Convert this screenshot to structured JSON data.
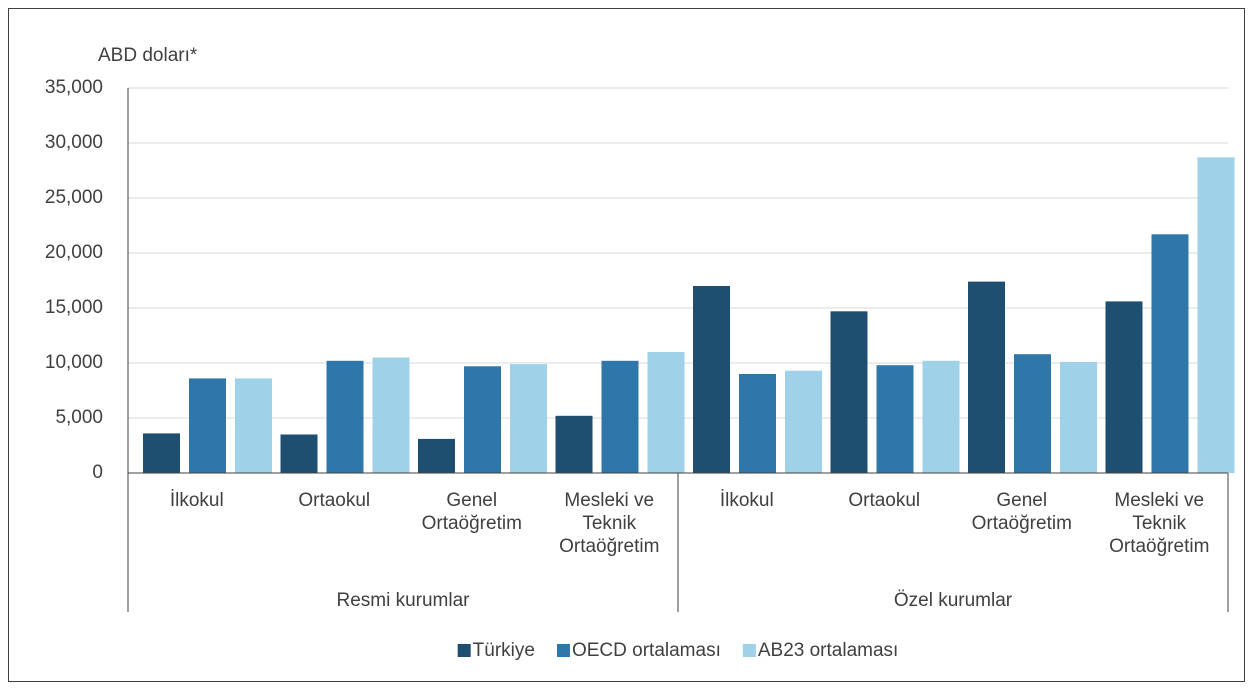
{
  "chart_data": {
    "type": "bar",
    "axis_title": "ABD doları*",
    "categories": [
      [
        "İlkokul"
      ],
      [
        "Ortaokul"
      ],
      [
        "Genel",
        "Ortaöğretim"
      ],
      [
        "Mesleki ve",
        "Teknik",
        "Ortaöğretim"
      ],
      [
        "İlkokul"
      ],
      [
        "Ortaokul"
      ],
      [
        "Genel",
        "Ortaöğretim"
      ],
      [
        "Mesleki ve",
        "Teknik",
        "Ortaöğretim"
      ]
    ],
    "groups": [
      {
        "name": "Resmi kurumlar",
        "span": 4
      },
      {
        "name": "Özel kurumlar",
        "span": 4
      }
    ],
    "series": [
      {
        "name": "Türkiye",
        "color": "#1e4e70",
        "values": [
          3600,
          3500,
          3100,
          5200,
          17000,
          14700,
          17400,
          15600
        ]
      },
      {
        "name": "OECD ortalaması",
        "color": "#2e77a8",
        "values": [
          8600,
          10200,
          9700,
          10200,
          9000,
          9800,
          10800,
          21700
        ]
      },
      {
        "name": "AB23 ortalaması",
        "color": "#9fd2e8",
        "values": [
          8600,
          10500,
          9900,
          11000,
          9300,
          10200,
          10100,
          28700
        ]
      }
    ],
    "ylim": [
      0,
      35000
    ],
    "yticks": [
      0,
      {
        "value": 5000,
        "label": "5,000"
      },
      {
        "value": 10000,
        "label": "10,000"
      },
      {
        "value": 15000,
        "label": "15,000"
      },
      {
        "value": 20000,
        "label": "20,000"
      },
      {
        "value": 25000,
        "label": "25,000"
      },
      {
        "value": 30000,
        "label": "30,000"
      },
      {
        "value": 35000,
        "label": "35,000"
      }
    ],
    "grid": true,
    "legend": "bottom"
  }
}
